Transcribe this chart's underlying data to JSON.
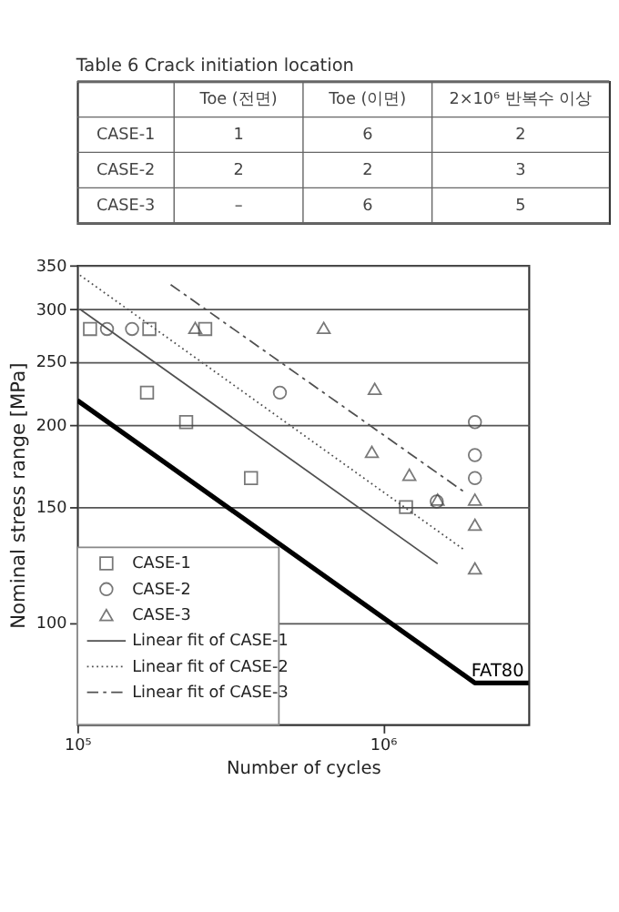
{
  "chart_data": [
    {
      "type": "other",
      "title": "Table 6 Crack initiation location",
      "categories": [
        "Toe (전면)",
        "Toe (이면)",
        "2×10⁶ 반복수 이상"
      ],
      "y_categories": [
        "CASE-1",
        "CASE-2",
        "CASE-3"
      ],
      "cell_labels": [
        [
          "1",
          "6",
          "2"
        ],
        [
          "2",
          "2",
          "3"
        ],
        [
          "–",
          "6",
          "5"
        ]
      ]
    },
    {
      "type": "scatter",
      "xlabel": "Number of cycles",
      "ylabel": "Nominal stress range [MPa]",
      "log": "xy",
      "grid": "y",
      "legend": "bottom left",
      "xlim": [
        100000,
        3000000
      ],
      "ylim": [
        70,
        350
      ],
      "xticks": [
        {
          "value": 100000,
          "label": "10⁵"
        },
        {
          "value": 1000000,
          "label": "10⁶"
        }
      ],
      "yticks": [
        100,
        150,
        200,
        250,
        300,
        350
      ],
      "annotations": [
        "FAT80"
      ],
      "series": [
        {
          "name": "CASE-1",
          "type": "scatter",
          "marker": "square",
          "color": "#404040",
          "x": [
            110000,
            172000,
            262000,
            169000,
            227000,
            370000,
            1190000
          ],
          "values": [
            280,
            280,
            280,
            224,
            202,
            166,
            150
          ]
        },
        {
          "name": "CASE-2",
          "type": "scatter",
          "marker": "circle",
          "color": "#404040",
          "x": [
            125000,
            151000,
            460000,
            1500000,
            2000000,
            2000000,
            2000000
          ],
          "values": [
            280,
            280,
            224,
            153,
            202,
            180,
            166
          ]
        },
        {
          "name": "CASE-3",
          "type": "scatter",
          "marker": "triangle",
          "color": "#404040",
          "x": [
            243000,
            640000,
            940000,
            920000,
            1220000,
            1510000,
            2000000,
            2000000,
            2000000
          ],
          "values": [
            281,
            281,
            227,
            182,
            168,
            154,
            154,
            141,
            121
          ]
        },
        {
          "name": "Linear fit of CASE-1",
          "type": "line",
          "line_style": "solid",
          "color": "#505050",
          "x": [
            102000,
            1510000
          ],
          "values": [
            300,
            123
          ]
        },
        {
          "name": "Linear fit of CASE-2",
          "type": "line",
          "line_style": "dotted",
          "color": "#505050",
          "x": [
            102000,
            1850000
          ],
          "values": [
            338,
            129
          ]
        },
        {
          "name": "Linear fit of CASE-3",
          "type": "line",
          "line_style": "dashed",
          "color": "#505050",
          "x": [
            202000,
            1850000
          ],
          "values": [
            327,
            158
          ]
        },
        {
          "type": "line",
          "line_style": "solid",
          "color": "#000000",
          "x": [
            100000,
            2000000,
            3000000
          ],
          "values": [
            218,
            81,
            81
          ]
        }
      ]
    }
  ]
}
